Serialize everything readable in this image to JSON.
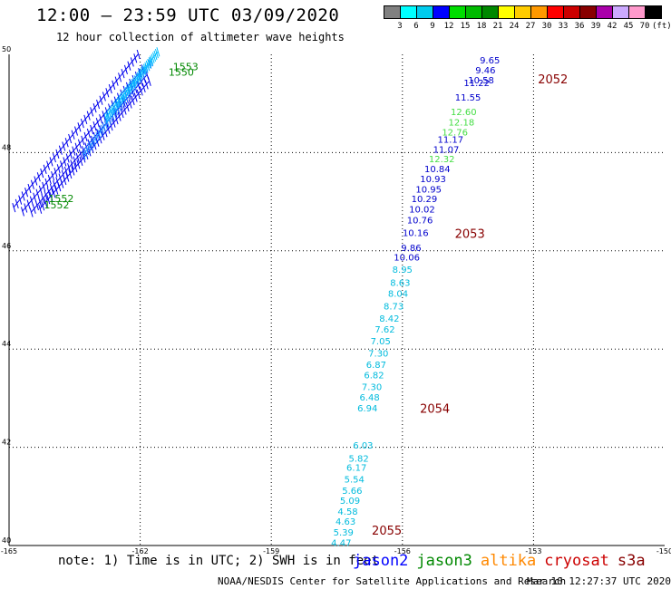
{
  "header": {
    "title": "12:00 – 23:59 UTC 03/09/2020",
    "subtitle": "12 hour collection of altimeter wave heights"
  },
  "scale": {
    "unit": "(ft)",
    "labels": [
      "3",
      "6",
      "9",
      "12",
      "15",
      "18",
      "21",
      "24",
      "27",
      "30",
      "33",
      "36",
      "39",
      "42",
      "45",
      "70"
    ],
    "colors": [
      "#808080",
      "#00ffff",
      "#00ccee",
      "#0000ff",
      "#00dd00",
      "#00bb00",
      "#008800",
      "#ffff00",
      "#ffcc00",
      "#ff9900",
      "#ff0000",
      "#cc0000",
      "#880000",
      "#aa00aa",
      "#ccaaff",
      "#ff99cc",
      "#000000"
    ]
  },
  "chart_data": {
    "type": "scatter",
    "x_ticks": [
      "-165",
      "-162",
      "-159",
      "-156",
      "-153",
      "-150"
    ],
    "y_ticks": [
      "50",
      "48",
      "46",
      "44",
      "42",
      "40"
    ],
    "xlim": [
      -165,
      -150
    ],
    "ylim": [
      40,
      50
    ],
    "grid": true,
    "track_jason2": [
      {
        "lon": -154.0,
        "lat": 49.82,
        "v": "9.65"
      },
      {
        "lon": -154.1,
        "lat": 49.61,
        "v": "9.46"
      },
      {
        "lon": -154.2,
        "lat": 49.41,
        "v": "10.58"
      },
      {
        "lon": -154.3,
        "lat": 49.35,
        "v": "11.22"
      },
      {
        "lon": -154.5,
        "lat": 49.06,
        "v": "11.55"
      },
      {
        "lon": -154.9,
        "lat": 48.2,
        "v": "11.17"
      },
      {
        "lon": -155.0,
        "lat": 48.0,
        "v": "11.07"
      },
      {
        "lon": -155.2,
        "lat": 47.6,
        "v": "10.84"
      },
      {
        "lon": -155.3,
        "lat": 47.4,
        "v": "10.93"
      },
      {
        "lon": -155.4,
        "lat": 47.19,
        "v": "10.95"
      },
      {
        "lon": -155.5,
        "lat": 46.99,
        "v": "10.29"
      },
      {
        "lon": -155.55,
        "lat": 46.78,
        "v": "10.02"
      },
      {
        "lon": -155.6,
        "lat": 46.56,
        "v": "10.76"
      },
      {
        "lon": -155.7,
        "lat": 46.3,
        "v": "10.16"
      },
      {
        "lon": -155.8,
        "lat": 46.0,
        "v": "9.86"
      },
      {
        "lon": -155.9,
        "lat": 45.8,
        "v": "10.06"
      }
    ],
    "track_green": [
      {
        "lon": -154.6,
        "lat": 48.76,
        "v": "12.60"
      },
      {
        "lon": -154.65,
        "lat": 48.55,
        "v": "12.18"
      },
      {
        "lon": -154.8,
        "lat": 48.35,
        "v": "12.76"
      },
      {
        "lon": -155.1,
        "lat": 47.8,
        "v": "12.32"
      }
    ],
    "track_cyan": [
      {
        "lon": -156.0,
        "lat": 45.55,
        "v": "8.95"
      },
      {
        "lon": -156.05,
        "lat": 45.29,
        "v": "8.63"
      },
      {
        "lon": -156.1,
        "lat": 45.06,
        "v": "8.04"
      },
      {
        "lon": -156.2,
        "lat": 44.81,
        "v": "8.73"
      },
      {
        "lon": -156.3,
        "lat": 44.56,
        "v": "8.42"
      },
      {
        "lon": -156.4,
        "lat": 44.34,
        "v": "7.62"
      },
      {
        "lon": -156.5,
        "lat": 44.1,
        "v": "7.05"
      },
      {
        "lon": -156.55,
        "lat": 43.85,
        "v": "7.30"
      },
      {
        "lon": -156.6,
        "lat": 43.62,
        "v": "6.87"
      },
      {
        "lon": -156.65,
        "lat": 43.4,
        "v": "6.82"
      },
      {
        "lon": -156.7,
        "lat": 43.16,
        "v": "7.30"
      },
      {
        "lon": -156.75,
        "lat": 42.95,
        "v": "6.48"
      },
      {
        "lon": -156.8,
        "lat": 42.73,
        "v": "6.94"
      },
      {
        "lon": -156.9,
        "lat": 41.97,
        "v": "6.03"
      },
      {
        "lon": -157.0,
        "lat": 41.71,
        "v": "5.82"
      },
      {
        "lon": -157.05,
        "lat": 41.52,
        "v": "6.17"
      },
      {
        "lon": -157.1,
        "lat": 41.28,
        "v": "5.54"
      },
      {
        "lon": -157.15,
        "lat": 41.05,
        "v": "5.66"
      },
      {
        "lon": -157.2,
        "lat": 40.85,
        "v": "5.09"
      },
      {
        "lon": -157.25,
        "lat": 40.63,
        "v": "4.58"
      },
      {
        "lon": -157.3,
        "lat": 40.42,
        "v": "4.63"
      },
      {
        "lon": -157.35,
        "lat": 40.2,
        "v": "5.39"
      },
      {
        "lon": -157.4,
        "lat": 39.99,
        "v": "4.47"
      }
    ],
    "time_labels": [
      {
        "lon": -152.9,
        "lat": 49.41,
        "v": "2052"
      },
      {
        "lon": -154.8,
        "lat": 46.26,
        "v": "2053"
      },
      {
        "lon": -155.6,
        "lat": 42.7,
        "v": "2054"
      },
      {
        "lon": -156.7,
        "lat": 40.22,
        "v": "2055"
      }
    ],
    "nw_time_labels": [
      {
        "lon": -161.25,
        "lat": 49.68,
        "v": "1553"
      },
      {
        "lon": -161.35,
        "lat": 49.57,
        "v": "1550"
      },
      {
        "lon": -164.1,
        "lat": 46.99,
        "v": "1552"
      },
      {
        "lon": -164.2,
        "lat": 46.86,
        "v": "1552"
      }
    ],
    "nw_swath": [
      {
        "lon1": -164.9,
        "lat1": 46.88,
        "lon2": -162.05,
        "lat2": 50.0,
        "color": "#0000ee"
      },
      {
        "lon1": -164.7,
        "lat1": 46.8,
        "lon2": -161.95,
        "lat2": 49.7,
        "color": "#0000ee"
      },
      {
        "lon1": -164.5,
        "lat1": 46.78,
        "lon2": -161.85,
        "lat2": 49.58,
        "color": "#0000ee"
      },
      {
        "lon1": -164.3,
        "lat1": 46.85,
        "lon2": -161.8,
        "lat2": 49.45,
        "color": "#0000ee"
      },
      {
        "lon1": -163.3,
        "lat1": 47.95,
        "lon2": -161.75,
        "lat2": 49.85,
        "color": "#1e90ff"
      },
      {
        "lon1": -162.8,
        "lat1": 48.7,
        "lon2": -161.6,
        "lat2": 50.05,
        "color": "#00bfff"
      }
    ]
  },
  "footer": {
    "note": "note: 1) Time is in UTC; 2) SWH is in feet",
    "satellites": [
      {
        "name": "jason2",
        "color": "#0000ff"
      },
      {
        "name": "jason3",
        "color": "#008800"
      },
      {
        "name": "altika",
        "color": "#ff8800"
      },
      {
        "name": "cryosat",
        "color": "#cc0000"
      },
      {
        "name": "s3a",
        "color": "#880000"
      }
    ],
    "credit": "NOAA/NESDIS Center for Satellite Applications and Research",
    "timestamp": "Mar 10 12:27:37 UTC 2020"
  }
}
